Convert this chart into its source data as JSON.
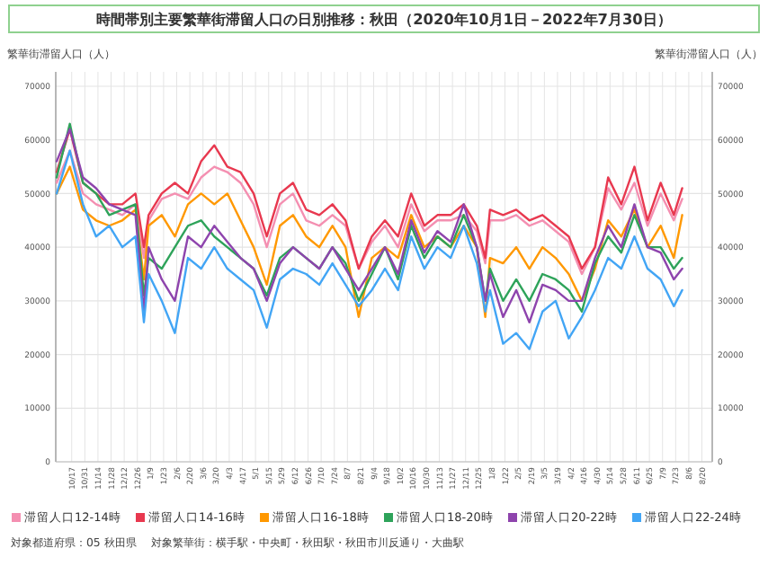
{
  "chart_data": {
    "type": "line",
    "title": "時間帯別主要繁華街滞留人口の日別推移：秋田（2020年10月1日－2022年7月30日）",
    "ylabel": "繁華街滞留人口（人）",
    "y2label": "繁華街滞留人口（人）",
    "x": [
      "2020-10-01",
      "2020-10-15",
      "2020-10-29",
      "2020-11-12",
      "2020-11-26",
      "2020-12-10",
      "2020-12-24",
      "2021-01-02",
      "2021-01-07",
      "2021-01-21",
      "2021-02-04",
      "2021-02-18",
      "2021-03-04",
      "2021-03-18",
      "2021-04-01",
      "2021-04-15",
      "2021-04-29",
      "2021-05-13",
      "2021-05-27",
      "2021-06-10",
      "2021-06-24",
      "2021-07-08",
      "2021-07-22",
      "2021-08-05",
      "2021-08-19",
      "2021-09-02",
      "2021-09-16",
      "2021-09-30",
      "2021-10-14",
      "2021-10-28",
      "2021-11-11",
      "2021-11-25",
      "2021-12-09",
      "2021-12-23",
      "2022-01-01",
      "2022-01-06",
      "2022-01-20",
      "2022-02-03",
      "2022-02-17",
      "2022-03-03",
      "2022-03-17",
      "2022-03-31",
      "2022-04-14",
      "2022-04-28",
      "2022-05-12",
      "2022-05-26",
      "2022-06-09",
      "2022-06-23",
      "2022-07-07",
      "2022-07-21",
      "2022-07-30"
    ],
    "series": [
      {
        "name": "滞留人口12-14時",
        "color": "#f48fb1",
        "values": [
          52000,
          58000,
          50000,
          48000,
          47000,
          46000,
          48000,
          38000,
          45000,
          49000,
          50000,
          49000,
          53000,
          55000,
          54000,
          52000,
          48000,
          40000,
          48000,
          50000,
          45000,
          44000,
          46000,
          44000,
          36000,
          41000,
          44000,
          40000,
          48000,
          43000,
          45000,
          45000,
          46000,
          43000,
          37000,
          45000,
          45000,
          46000,
          44000,
          45000,
          43000,
          41000,
          35000,
          40000,
          51000,
          47000,
          52000,
          44000,
          50000,
          45000,
          49000
        ]
      },
      {
        "name": "滞留人口14-16時",
        "color": "#e8384f",
        "values": [
          54000,
          62000,
          52000,
          50000,
          48000,
          48000,
          50000,
          40000,
          46000,
          50000,
          52000,
          50000,
          56000,
          59000,
          55000,
          54000,
          50000,
          42000,
          50000,
          52000,
          47000,
          46000,
          48000,
          45000,
          36000,
          42000,
          45000,
          42000,
          50000,
          44000,
          46000,
          46000,
          48000,
          44000,
          38000,
          47000,
          46000,
          47000,
          45000,
          46000,
          44000,
          42000,
          36000,
          40000,
          53000,
          48000,
          55000,
          45000,
          52000,
          46000,
          51000
        ]
      },
      {
        "name": "滞留人口16-18時",
        "color": "#ff9800",
        "values": [
          50000,
          55000,
          47000,
          45000,
          44000,
          45000,
          47000,
          34000,
          44000,
          46000,
          42000,
          48000,
          50000,
          48000,
          50000,
          45000,
          40000,
          33000,
          44000,
          46000,
          42000,
          40000,
          44000,
          40000,
          27000,
          38000,
          40000,
          38000,
          46000,
          40000,
          42000,
          40000,
          44000,
          40000,
          27000,
          38000,
          37000,
          40000,
          36000,
          40000,
          38000,
          35000,
          30000,
          36000,
          45000,
          42000,
          47000,
          40000,
          44000,
          38000,
          46000
        ]
      },
      {
        "name": "滞留人口18-20時",
        "color": "#2ea35a",
        "values": [
          53000,
          63000,
          52000,
          50000,
          46000,
          47000,
          48000,
          31000,
          38000,
          36000,
          40000,
          44000,
          45000,
          42000,
          40000,
          38000,
          36000,
          31000,
          38000,
          40000,
          38000,
          36000,
          40000,
          37000,
          30000,
          35000,
          40000,
          34000,
          44000,
          38000,
          42000,
          40000,
          46000,
          40000,
          30000,
          36000,
          30000,
          34000,
          30000,
          35000,
          34000,
          32000,
          28000,
          37000,
          42000,
          39000,
          46000,
          40000,
          40000,
          36000,
          38000
        ]
      },
      {
        "name": "滞留人口20-22時",
        "color": "#8e44ad",
        "values": [
          56000,
          62000,
          53000,
          51000,
          48000,
          47000,
          46000,
          28000,
          40000,
          34000,
          30000,
          42000,
          40000,
          44000,
          41000,
          38000,
          36000,
          30000,
          37000,
          40000,
          38000,
          36000,
          40000,
          36000,
          32000,
          36000,
          40000,
          35000,
          45000,
          39000,
          43000,
          41000,
          48000,
          40000,
          30000,
          35000,
          27000,
          32000,
          26000,
          33000,
          32000,
          30000,
          30000,
          38000,
          44000,
          40000,
          48000,
          40000,
          39000,
          34000,
          36000
        ]
      },
      {
        "name": "滞留人口22-24時",
        "color": "#42a5f5",
        "values": [
          50000,
          58000,
          48000,
          42000,
          44000,
          40000,
          42000,
          26000,
          35000,
          30000,
          24000,
          38000,
          36000,
          40000,
          36000,
          34000,
          32000,
          25000,
          34000,
          36000,
          35000,
          33000,
          37000,
          33000,
          29000,
          32000,
          36000,
          32000,
          42000,
          36000,
          40000,
          38000,
          44000,
          37000,
          28000,
          32000,
          22000,
          24000,
          21000,
          28000,
          30000,
          23000,
          27000,
          32000,
          38000,
          36000,
          42000,
          36000,
          34000,
          29000,
          32000
        ]
      }
    ],
    "xlim": [
      "2020-09-30",
      "2022-08-31"
    ],
    "xticks": [
      {
        "value": "2020-10-17",
        "label": "10/17"
      },
      {
        "value": "2020-10-31",
        "label": "10/31"
      },
      {
        "value": "2020-11-14",
        "label": "11/14"
      },
      {
        "value": "2020-11-28",
        "label": "11/28"
      },
      {
        "value": "2020-12-12",
        "label": "12/12"
      },
      {
        "value": "2020-12-26",
        "label": "12/26"
      },
      {
        "value": "2021-01-09",
        "label": "1/9"
      },
      {
        "value": "2021-01-23",
        "label": "1/23"
      },
      {
        "value": "2021-02-06",
        "label": "2/6"
      },
      {
        "value": "2021-02-20",
        "label": "2/20"
      },
      {
        "value": "2021-03-06",
        "label": "3/6"
      },
      {
        "value": "2021-03-20",
        "label": "3/20"
      },
      {
        "value": "2021-04-03",
        "label": "4/3"
      },
      {
        "value": "2021-04-17",
        "label": "4/17"
      },
      {
        "value": "2021-05-01",
        "label": "5/1"
      },
      {
        "value": "2021-05-15",
        "label": "5/15"
      },
      {
        "value": "2021-05-29",
        "label": "5/29"
      },
      {
        "value": "2021-06-12",
        "label": "6/12"
      },
      {
        "value": "2021-06-26",
        "label": "6/26"
      },
      {
        "value": "2021-07-10",
        "label": "7/10"
      },
      {
        "value": "2021-07-24",
        "label": "7/24"
      },
      {
        "value": "2021-08-07",
        "label": "8/7"
      },
      {
        "value": "2021-08-21",
        "label": "8/21"
      },
      {
        "value": "2021-09-04",
        "label": "9/4"
      },
      {
        "value": "2021-09-18",
        "label": "9/18"
      },
      {
        "value": "2021-10-02",
        "label": "10/2"
      },
      {
        "value": "2021-10-16",
        "label": "10/16"
      },
      {
        "value": "2021-10-30",
        "label": "10/30"
      },
      {
        "value": "2021-11-13",
        "label": "11/13"
      },
      {
        "value": "2021-11-27",
        "label": "11/27"
      },
      {
        "value": "2021-12-11",
        "label": "12/11"
      },
      {
        "value": "2021-12-25",
        "label": "12/25"
      },
      {
        "value": "2022-01-08",
        "label": "1/8"
      },
      {
        "value": "2022-01-22",
        "label": "1/22"
      },
      {
        "value": "2022-02-05",
        "label": "2/5"
      },
      {
        "value": "2022-02-19",
        "label": "2/19"
      },
      {
        "value": "2022-03-05",
        "label": "3/5"
      },
      {
        "value": "2022-03-19",
        "label": "3/19"
      },
      {
        "value": "2022-04-02",
        "label": "4/2"
      },
      {
        "value": "2022-04-16",
        "label": "4/16"
      },
      {
        "value": "2022-04-30",
        "label": "4/30"
      },
      {
        "value": "2022-05-14",
        "label": "5/14"
      },
      {
        "value": "2022-05-28",
        "label": "5/28"
      },
      {
        "value": "2022-06-11",
        "label": "6/11"
      },
      {
        "value": "2022-06-25",
        "label": "6/25"
      },
      {
        "value": "2022-07-09",
        "label": "7/9"
      },
      {
        "value": "2022-07-23",
        "label": "7/23"
      },
      {
        "value": "2022-08-06",
        "label": "8/6"
      },
      {
        "value": "2022-08-20",
        "label": "8/20"
      }
    ],
    "ylim": [
      0,
      70000
    ],
    "yticks": [
      0,
      10000,
      20000,
      30000,
      40000,
      50000,
      60000,
      70000
    ],
    "y2lim": [
      0,
      70000
    ],
    "y2ticks": [
      0,
      10000,
      20000,
      30000,
      40000,
      50000,
      60000,
      70000
    ],
    "grid": true,
    "legend": "bottom",
    "marker": "none",
    "line_style": "solid",
    "annotations": [
      "対象都道府県：05 秋田県",
      "対象繁華街：横手駅・中央町・秋田駅・秋田市川反通り・大曲駅"
    ]
  }
}
